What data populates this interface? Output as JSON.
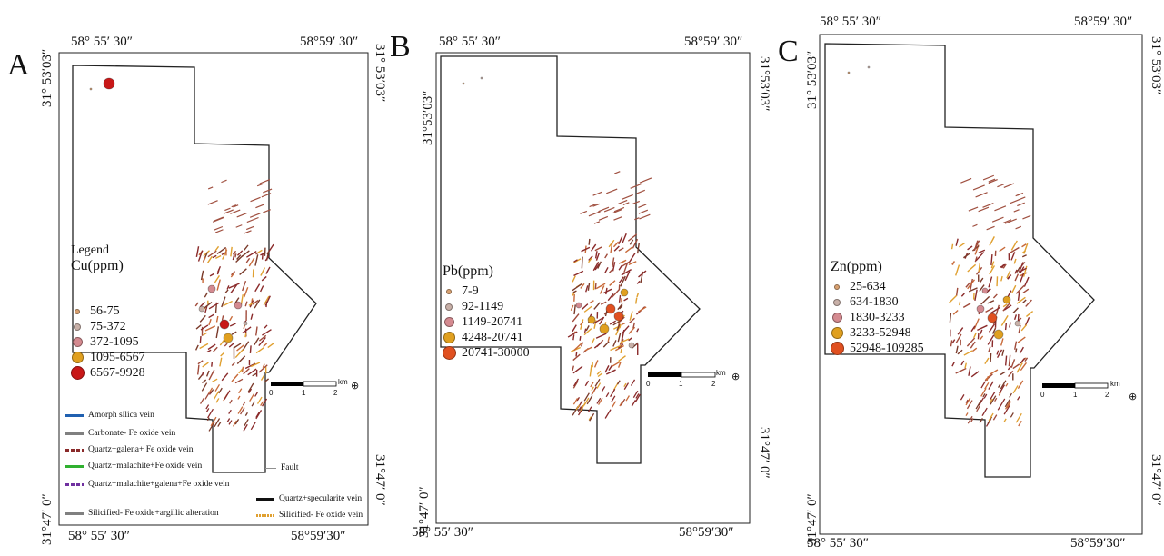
{
  "panels": [
    {
      "id": "A",
      "label": "A",
      "coords": {
        "top_left": "58° 55′ 30″",
        "top_right": "58°59′ 30″",
        "bottom_left": "58° 55′ 30″",
        "bottom_right": "58°59′30″",
        "left_top": "31° 53′03″",
        "left_bottom": "31°47′ 0″",
        "right_top": "31° 53′03″",
        "right_bottom": "31°47′ 0″"
      },
      "legend_title": "Legend",
      "legend_heading": "Cu(ppm)",
      "classes": [
        {
          "label": "56-75",
          "color": "#d8a070"
        },
        {
          "label": "75-372",
          "color": "#c8b0a8"
        },
        {
          "label": "372-1095",
          "color": "#d48a90"
        },
        {
          "label": "1095-6567",
          "color": "#e0a020"
        },
        {
          "label": "6567-9928",
          "color": "#c81818"
        }
      ],
      "scale": {
        "unit": "km",
        "ticks": [
          "0",
          "1",
          "2"
        ]
      }
    },
    {
      "id": "B",
      "label": "B",
      "coords": {
        "top_left": "58° 55′ 30″",
        "top_right": "58°59′ 30″",
        "bottom_left": "58° 55′ 30″",
        "bottom_right": "58°59′30″",
        "left_top": "31°53′03″",
        "left_bottom": "31°47′ 0″",
        "right_top": "31°53′03″",
        "right_bottom": "31°47′ 0″"
      },
      "legend_heading": "Pb(ppm)",
      "classes": [
        {
          "label": "7-9",
          "color": "#d8a070"
        },
        {
          "label": "92-1149",
          "color": "#c8b0a8"
        },
        {
          "label": "1149-20741",
          "color": "#d48a90"
        },
        {
          "label": "4248-20741",
          "color": "#e0a020"
        },
        {
          "label": "20741-30000",
          "color": "#e05020"
        }
      ],
      "scale": {
        "unit": "km",
        "ticks": [
          "0",
          "1",
          "2"
        ]
      }
    },
    {
      "id": "C",
      "label": "C",
      "coords": {
        "top_left": "58° 55′ 30″",
        "top_right": "58°59′ 30″",
        "bottom_left": "58° 55′ 30″",
        "bottom_right": "58°59′30″",
        "left_top": "31° 53′03″",
        "left_bottom": "31°47′ 0″",
        "right_top": "31° 53′03″",
        "right_bottom": "31°47′ 0″"
      },
      "legend_heading": "Zn(ppm)",
      "classes": [
        {
          "label": "25-634",
          "color": "#d8a070"
        },
        {
          "label": "634-1830",
          "color": "#c8b0a8"
        },
        {
          "label": "1830-3233",
          "color": "#d48a90"
        },
        {
          "label": "3233-52948",
          "color": "#e0a020"
        },
        {
          "label": "52948-109285",
          "color": "#e05020"
        }
      ],
      "scale": {
        "unit": "km",
        "ticks": [
          "0",
          "1",
          "2"
        ]
      }
    }
  ],
  "features": [
    {
      "label": "Amorph silica vein",
      "color": "#2060b0"
    },
    {
      "label": "Carbonate- Fe oxide vein",
      "color": "#808080"
    },
    {
      "label": "Quartz+galena+ Fe oxide vein",
      "color": "#8a2a2a"
    },
    {
      "label": "Quartz+malachite+Fe oxide vein",
      "color": "#30b030"
    },
    {
      "label": "Quartz+malachite+galena+Fe oxide vein",
      "color": "#7030a0"
    },
    {
      "label": "Silicified- Fe oxide+argillic alteration",
      "color": "#808080"
    },
    {
      "label": "Fault",
      "color": "#909090"
    },
    {
      "label": "Quartz+specularite vein",
      "color": "#111111"
    },
    {
      "label": "Silicified- Fe oxide vein",
      "color": "#e0a030"
    }
  ]
}
